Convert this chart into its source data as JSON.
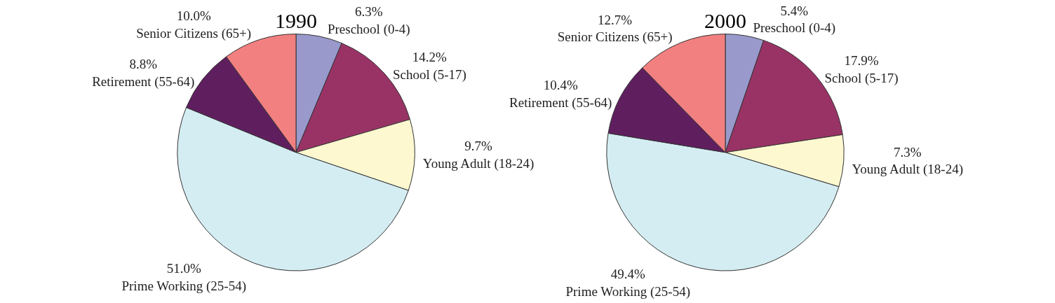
{
  "chart_data": [
    {
      "type": "pie",
      "title": "1990",
      "categories": [
        "Preschool (0-4)",
        "School (5-17)",
        "Young Adult (18-24)",
        "Prime Working (25-54)",
        "Retirement (55-64)",
        "Senior Citizens (65+)"
      ],
      "values": [
        6.3,
        14.2,
        9.7,
        51.0,
        8.8,
        10.0
      ],
      "value_labels": [
        "6.3%",
        "14.2%",
        "9.7%",
        "51.0%",
        "8.8%",
        "10.0%"
      ],
      "colors": [
        "#9999cc",
        "#993366",
        "#fdf8d0",
        "#d4edf2",
        "#5f1f5f",
        "#f28080"
      ],
      "legend": false
    },
    {
      "type": "pie",
      "title": "2000",
      "categories": [
        "Preschool (0-4)",
        "School (5-17)",
        "Young Adult (18-24)",
        "Prime Working (25-54)",
        "Retirement (55-64)",
        "Senior Citizens (65+)"
      ],
      "values": [
        5.4,
        17.9,
        7.3,
        49.4,
        10.4,
        12.7
      ],
      "value_labels": [
        "5.4%",
        "17.9%",
        "7.3%",
        "49.4%",
        "10.4%",
        "12.7%"
      ],
      "colors": [
        "#9999cc",
        "#993366",
        "#fdf8d0",
        "#d4edf2",
        "#5f1f5f",
        "#f28080"
      ],
      "legend": false
    }
  ]
}
